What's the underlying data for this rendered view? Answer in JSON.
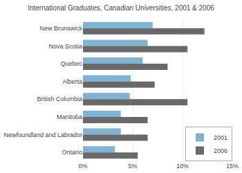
{
  "chart_data": {
    "type": "bar",
    "orientation": "horizontal",
    "title": "International Graduates, Canadian Universities, 2001 & 2006",
    "categories": [
      "New Brunswick",
      "Nova Scotia",
      "Quebec",
      "Alberta",
      "British Columbia",
      "Manitoba",
      "Newfoundland and Labrador",
      "Ontario"
    ],
    "series": [
      {
        "name": "2001",
        "color": "#7fb3d3",
        "values": [
          7.0,
          6.5,
          6.0,
          4.8,
          4.7,
          3.8,
          3.8,
          3.2
        ]
      },
      {
        "name": "2006",
        "color": "#696969",
        "values": [
          12.2,
          10.5,
          8.5,
          7.2,
          10.5,
          6.5,
          6.5,
          5.5
        ]
      }
    ],
    "xlim": [
      0,
      15
    ],
    "xticks": [
      {
        "value": 0,
        "label": "0%"
      },
      {
        "value": 5,
        "label": "5%"
      },
      {
        "value": 10,
        "label": "10%"
      },
      {
        "value": 15,
        "label": "15%"
      }
    ],
    "grid": true,
    "legend": "lower right"
  }
}
